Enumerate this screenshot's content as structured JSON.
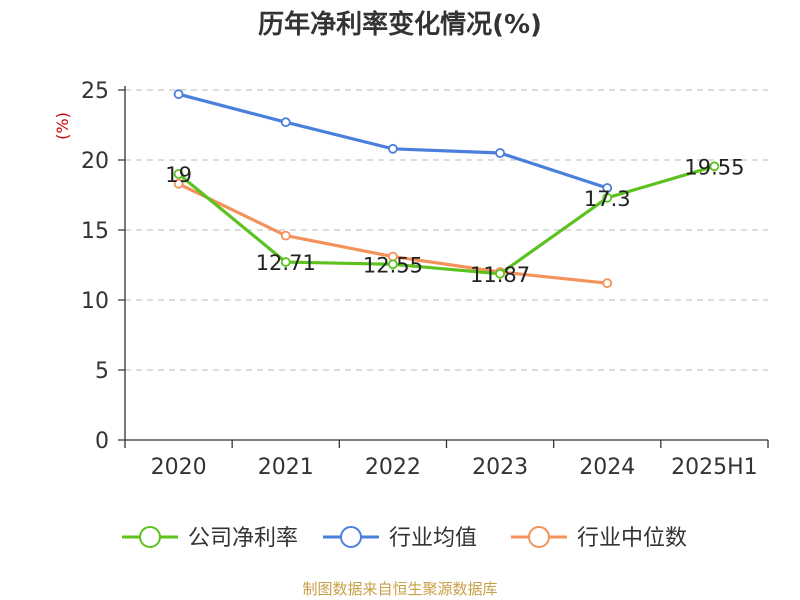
{
  "chart_data": {
    "type": "line",
    "title": "历年净利率变化情况(%)",
    "ylabel": "(%)",
    "categories": [
      "2020",
      "2021",
      "2022",
      "2023",
      "2024",
      "2025H1"
    ],
    "ylim": [
      0,
      25
    ],
    "yticks": [
      0,
      5,
      10,
      15,
      20,
      25
    ],
    "grid": true,
    "legend_position": "bottom",
    "series": [
      {
        "name": "公司净利率",
        "color": "#5cc21f",
        "values": [
          19,
          12.71,
          12.55,
          11.87,
          17.3,
          19.55
        ],
        "labels": [
          "19",
          "12.71",
          "12.55",
          "11.87",
          "17.3",
          "19.55"
        ]
      },
      {
        "name": "行业均值",
        "color": "#4a7fdc",
        "values": [
          24.7,
          22.7,
          20.8,
          20.5,
          18.0,
          null
        ],
        "labels": []
      },
      {
        "name": "行业中位数",
        "color": "#f5915a",
        "values": [
          18.3,
          14.6,
          13.1,
          12.0,
          11.2,
          null
        ],
        "labels": []
      }
    ]
  },
  "footer": {
    "source": "制图数据来自恒生聚源数据库"
  }
}
